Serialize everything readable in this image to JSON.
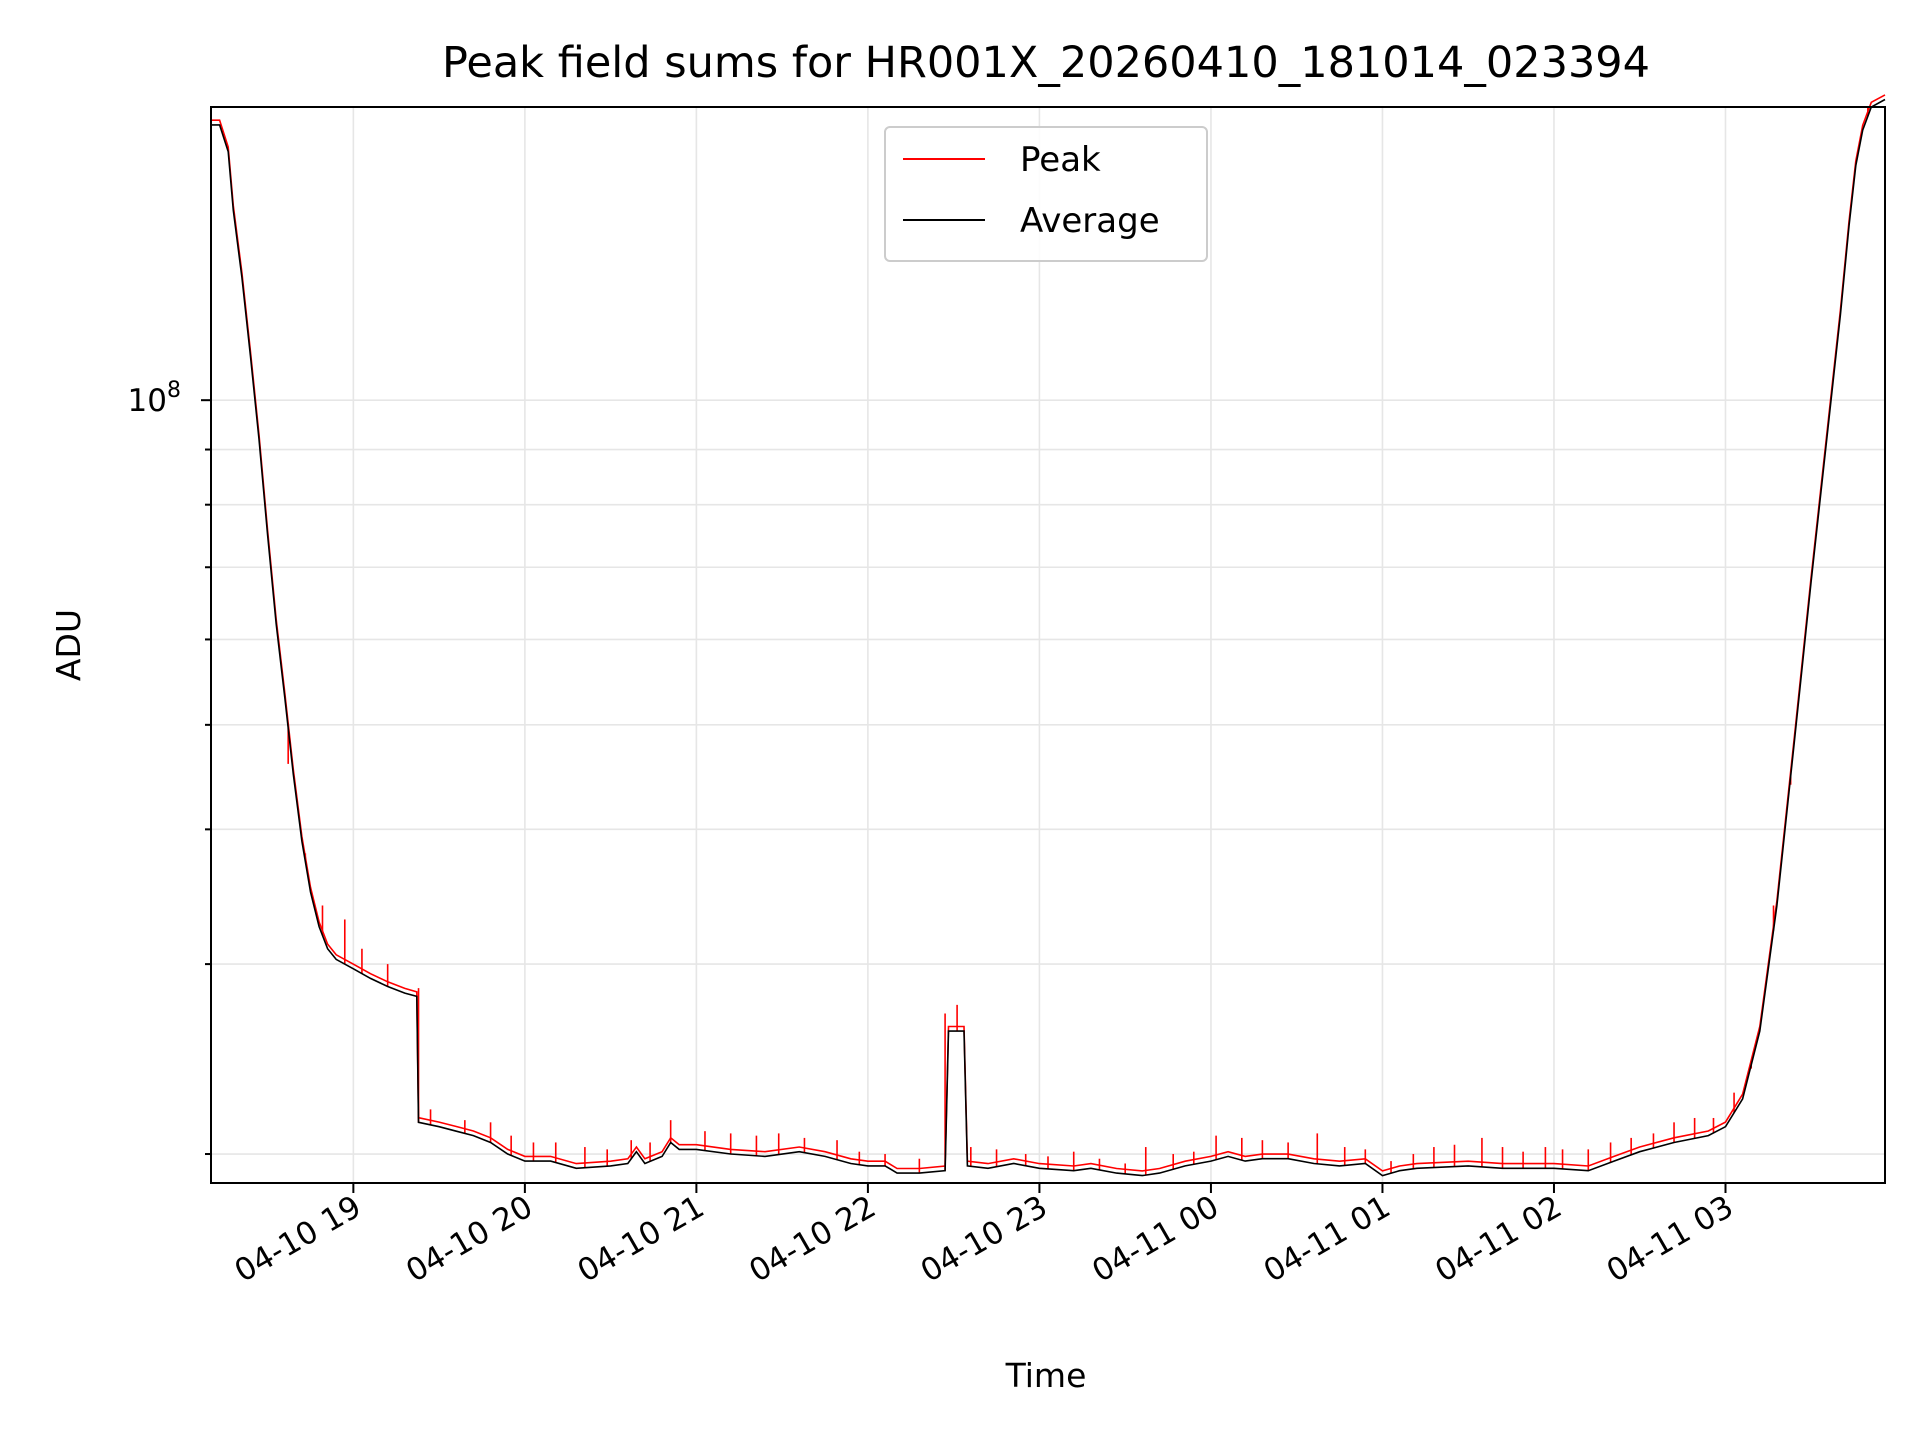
{
  "chart_data": {
    "type": "line",
    "title": "Peak field sums for HR001X_20260410_181014_023394",
    "xlabel": "Time",
    "ylabel": "ADU",
    "yscale": "log",
    "ylim": [
      18800000,
      187000000
    ],
    "xlim": [
      18.17,
      27.93
    ],
    "x_units": "hours since 2026-04-10 00:00",
    "major_y_ticks": [
      {
        "value": 100000000,
        "label_base": "10",
        "label_exp": "8"
      }
    ],
    "minor_y_ticks": [
      20000000,
      30000000,
      40000000,
      50000000,
      60000000,
      70000000,
      80000000,
      90000000,
      200000000
    ],
    "x_ticks": [
      {
        "value": 19,
        "label": "04-10 19"
      },
      {
        "value": 20,
        "label": "04-10 20"
      },
      {
        "value": 21,
        "label": "04-10 21"
      },
      {
        "value": 22,
        "label": "04-10 22"
      },
      {
        "value": 23,
        "label": "04-10 23"
      },
      {
        "value": 24,
        "label": "04-11 00"
      },
      {
        "value": 25,
        "label": "04-11 01"
      },
      {
        "value": 26,
        "label": "04-11 02"
      },
      {
        "value": 27,
        "label": "04-11 03"
      }
    ],
    "grid": true,
    "legend_position": "top-center",
    "series": [
      {
        "name": "Peak",
        "color": "#ff0000"
      },
      {
        "name": "Average",
        "color": "#000000"
      }
    ],
    "average_curve": [
      [
        18.17,
        180000000
      ],
      [
        18.22,
        180000000
      ],
      [
        18.27,
        170000000
      ],
      [
        18.3,
        150000000
      ],
      [
        18.35,
        130000000
      ],
      [
        18.4,
        110000000
      ],
      [
        18.45,
        92000000
      ],
      [
        18.5,
        75000000
      ],
      [
        18.55,
        62000000
      ],
      [
        18.6,
        53000000
      ],
      [
        18.65,
        45000000
      ],
      [
        18.7,
        39000000
      ],
      [
        18.75,
        35000000
      ],
      [
        18.8,
        32500000
      ],
      [
        18.85,
        31000000
      ],
      [
        18.9,
        30300000
      ],
      [
        19.0,
        29700000
      ],
      [
        19.1,
        29100000
      ],
      [
        19.2,
        28600000
      ],
      [
        19.3,
        28200000
      ],
      [
        19.37,
        28000000
      ],
      [
        19.38,
        21400000
      ],
      [
        19.5,
        21200000
      ],
      [
        19.6,
        21000000
      ],
      [
        19.7,
        20800000
      ],
      [
        19.8,
        20500000
      ],
      [
        19.9,
        20000000
      ],
      [
        20.0,
        19700000
      ],
      [
        20.15,
        19700000
      ],
      [
        20.3,
        19400000
      ],
      [
        20.5,
        19500000
      ],
      [
        20.6,
        19600000
      ],
      [
        20.65,
        20100000
      ],
      [
        20.7,
        19600000
      ],
      [
        20.8,
        19900000
      ],
      [
        20.85,
        20500000
      ],
      [
        20.9,
        20200000
      ],
      [
        21.0,
        20200000
      ],
      [
        21.2,
        20000000
      ],
      [
        21.4,
        19900000
      ],
      [
        21.6,
        20100000
      ],
      [
        21.75,
        19900000
      ],
      [
        21.9,
        19600000
      ],
      [
        22.0,
        19500000
      ],
      [
        22.1,
        19500000
      ],
      [
        22.17,
        19200000
      ],
      [
        22.3,
        19200000
      ],
      [
        22.45,
        19300000
      ],
      [
        22.47,
        26000000
      ],
      [
        22.56,
        26000000
      ],
      [
        22.58,
        19500000
      ],
      [
        22.7,
        19400000
      ],
      [
        22.85,
        19600000
      ],
      [
        23.0,
        19400000
      ],
      [
        23.2,
        19300000
      ],
      [
        23.3,
        19400000
      ],
      [
        23.45,
        19200000
      ],
      [
        23.6,
        19100000
      ],
      [
        23.7,
        19200000
      ],
      [
        23.85,
        19500000
      ],
      [
        24.0,
        19700000
      ],
      [
        24.1,
        19900000
      ],
      [
        24.2,
        19700000
      ],
      [
        24.3,
        19800000
      ],
      [
        24.45,
        19800000
      ],
      [
        24.6,
        19600000
      ],
      [
        24.75,
        19500000
      ],
      [
        24.9,
        19600000
      ],
      [
        25.0,
        19100000
      ],
      [
        25.1,
        19300000
      ],
      [
        25.2,
        19400000
      ],
      [
        25.5,
        19500000
      ],
      [
        25.7,
        19400000
      ],
      [
        26.0,
        19400000
      ],
      [
        26.2,
        19300000
      ],
      [
        26.35,
        19700000
      ],
      [
        26.5,
        20100000
      ],
      [
        26.7,
        20500000
      ],
      [
        26.9,
        20800000
      ],
      [
        27.0,
        21200000
      ],
      [
        27.1,
        22500000
      ],
      [
        27.2,
        26000000
      ],
      [
        27.3,
        34000000
      ],
      [
        27.4,
        48000000
      ],
      [
        27.5,
        68000000
      ],
      [
        27.6,
        95000000
      ],
      [
        27.67,
        120000000
      ],
      [
        27.72,
        145000000
      ],
      [
        27.76,
        165000000
      ],
      [
        27.8,
        178000000
      ],
      [
        27.85,
        187000000
      ],
      [
        27.93,
        190000000
      ]
    ],
    "peak_spikes": [
      [
        18.62,
        46000000
      ],
      [
        18.72,
        38000000
      ],
      [
        18.82,
        34000000
      ],
      [
        18.95,
        33000000
      ],
      [
        19.05,
        31000000
      ],
      [
        19.2,
        30000000
      ],
      [
        19.38,
        28500000
      ],
      [
        19.45,
        22000000
      ],
      [
        19.65,
        21500000
      ],
      [
        19.8,
        21400000
      ],
      [
        19.92,
        20800000
      ],
      [
        20.05,
        20500000
      ],
      [
        20.18,
        20500000
      ],
      [
        20.35,
        20300000
      ],
      [
        20.48,
        20200000
      ],
      [
        20.62,
        20600000
      ],
      [
        20.73,
        20500000
      ],
      [
        20.85,
        21500000
      ],
      [
        21.05,
        21000000
      ],
      [
        21.2,
        20900000
      ],
      [
        21.35,
        20800000
      ],
      [
        21.48,
        20900000
      ],
      [
        21.63,
        20700000
      ],
      [
        21.82,
        20600000
      ],
      [
        21.95,
        20100000
      ],
      [
        22.1,
        20000000
      ],
      [
        22.3,
        19800000
      ],
      [
        22.45,
        27000000
      ],
      [
        22.52,
        27500000
      ],
      [
        22.6,
        20300000
      ],
      [
        22.75,
        20200000
      ],
      [
        22.92,
        20000000
      ],
      [
        23.05,
        19900000
      ],
      [
        23.2,
        20100000
      ],
      [
        23.35,
        19800000
      ],
      [
        23.5,
        19600000
      ],
      [
        23.62,
        20300000
      ],
      [
        23.78,
        20000000
      ],
      [
        23.9,
        20100000
      ],
      [
        24.03,
        20800000
      ],
      [
        24.18,
        20700000
      ],
      [
        24.3,
        20600000
      ],
      [
        24.45,
        20500000
      ],
      [
        24.62,
        20900000
      ],
      [
        24.78,
        20300000
      ],
      [
        24.9,
        20200000
      ],
      [
        25.05,
        19700000
      ],
      [
        25.18,
        20000000
      ],
      [
        25.3,
        20300000
      ],
      [
        25.42,
        20400000
      ],
      [
        25.58,
        20700000
      ],
      [
        25.7,
        20300000
      ],
      [
        25.82,
        20100000
      ],
      [
        25.95,
        20300000
      ],
      [
        26.05,
        20200000
      ],
      [
        26.2,
        20200000
      ],
      [
        26.33,
        20500000
      ],
      [
        26.45,
        20700000
      ],
      [
        26.58,
        20900000
      ],
      [
        26.7,
        21400000
      ],
      [
        26.82,
        21600000
      ],
      [
        26.93,
        21600000
      ],
      [
        27.05,
        22800000
      ],
      [
        27.15,
        24000000
      ],
      [
        27.28,
        34000000
      ],
      [
        27.38,
        44000000
      ],
      [
        27.83,
        187000000
      ]
    ]
  }
}
